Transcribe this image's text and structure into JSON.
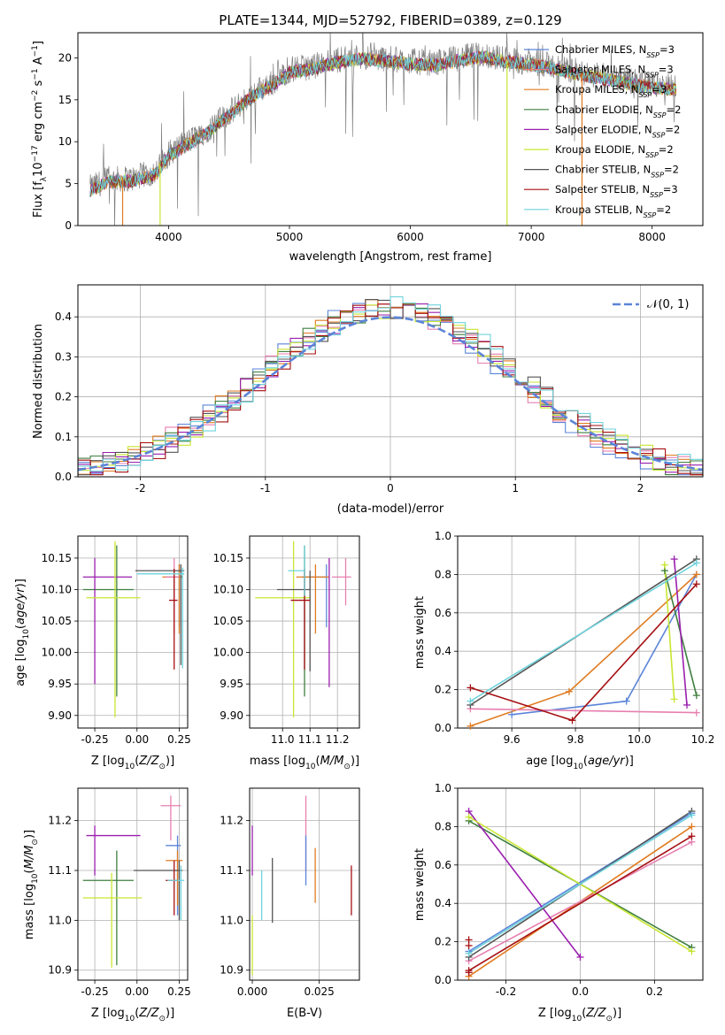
{
  "figure_title": "PLATE=1344, MJD=52792, FIBERID=0389, z=0.129",
  "colors": {
    "chabrier_miles": "#5b84d8",
    "salpeter_miles": "#e47a7a",
    "kroupa_miles": "#e07b20",
    "chabrier_elodie": "#3f7f3f",
    "salpeter_elodie": "#9a1fae",
    "kroupa_elodie": "#c8e632",
    "chabrier_stelib": "#555555",
    "salpeter_stelib": "#a60f12",
    "kroupa_stelib": "#6fd3dd",
    "gaussian": "#5b84d8",
    "pink": "#e77fb0"
  },
  "chart_data": [
    {
      "id": "spectrum",
      "type": "line",
      "title": "PLATE=1344, MJD=52792, FIBERID=0389, z=0.129",
      "xlabel": "wavelength [Angstrom, rest frame]",
      "ylabel": "Flux [f_λ10^-17 erg cm^-2 s^-1 A^-1]",
      "xlim": [
        3250,
        8420
      ],
      "ylim": [
        0,
        23
      ],
      "xticks": [
        4000,
        5000,
        6000,
        7000,
        8000
      ],
      "yticks": [
        0,
        5,
        10,
        15,
        20
      ],
      "legend_position": "top-right",
      "legend": [
        {
          "label": "Chabrier MILES, N",
          "sub": "SSP",
          "tail": "=3",
          "color_key": "chabrier_miles"
        },
        {
          "label": "Salpeter MILES, N",
          "sub": "SSP",
          "tail": "=3",
          "color_key": "salpeter_miles"
        },
        {
          "label": "Kroupa MILES, N",
          "sub": "SSP",
          "tail": "=3",
          "color_key": "kroupa_miles"
        },
        {
          "label": "Chabrier ELODIE, N",
          "sub": "SSP",
          "tail": "=2",
          "color_key": "chabrier_elodie"
        },
        {
          "label": "Salpeter ELODIE, N",
          "sub": "SSP",
          "tail": "=2",
          "color_key": "salpeter_elodie"
        },
        {
          "label": "Kroupa ELODIE, N",
          "sub": "SSP",
          "tail": "=2",
          "color_key": "kroupa_elodie"
        },
        {
          "label": "Chabrier STELIB, N",
          "sub": "SSP",
          "tail": "=2",
          "color_key": "chabrier_stelib"
        },
        {
          "label": "Salpeter STELIB, N",
          "sub": "SSP",
          "tail": "=3",
          "color_key": "salpeter_stelib"
        },
        {
          "label": "Kroupa STELIB, N",
          "sub": "SSP",
          "tail": "=2",
          "color_key": "kroupa_stelib"
        }
      ],
      "continuum": [
        [
          3350,
          4.5
        ],
        [
          3500,
          5.5
        ],
        [
          3700,
          5.6
        ],
        [
          3900,
          6.5
        ],
        [
          4000,
          8.6
        ],
        [
          4100,
          9.5
        ],
        [
          4300,
          11.2
        ],
        [
          4500,
          13.4
        ],
        [
          4700,
          15.8
        ],
        [
          4900,
          17.4
        ],
        [
          5000,
          18.6
        ],
        [
          5200,
          19.0
        ],
        [
          5400,
          19.8
        ],
        [
          5600,
          20.2
        ],
        [
          5800,
          19.9
        ],
        [
          6000,
          19.6
        ],
        [
          6200,
          19.4
        ],
        [
          6400,
          20.0
        ],
        [
          6600,
          20.4
        ],
        [
          6800,
          19.8
        ],
        [
          7000,
          19.5
        ],
        [
          7200,
          19.0
        ],
        [
          7400,
          18.3
        ],
        [
          7600,
          17.8
        ],
        [
          7800,
          17.2
        ],
        [
          8000,
          16.8
        ],
        [
          8200,
          16.5
        ]
      ]
    },
    {
      "id": "residuals",
      "type": "line",
      "xlabel": "(data-model)/error",
      "ylabel": "Normed distribution",
      "xlim": [
        -2.5,
        2.5
      ],
      "ylim": [
        0,
        0.48
      ],
      "xticks": [
        -2,
        -1,
        0,
        1,
        2
      ],
      "yticks": [
        0.0,
        0.1,
        0.2,
        0.3,
        0.4
      ],
      "grid": true,
      "legend_position": "top-right",
      "legend_label": "𝒩(0, 1)",
      "bin_width": 0.1,
      "gaussian_sigma": 1.0
    },
    {
      "id": "age_vs_z",
      "type": "scatter",
      "xlabel": "Z [log10(Z/Z⊙)]",
      "ylabel": "age [log10(age/yr)]",
      "xlim": [
        -0.35,
        0.3
      ],
      "ylim": [
        9.88,
        10.185
      ],
      "xticks": [
        -0.25,
        0.0,
        0.25
      ],
      "yticks": [
        9.9,
        9.95,
        10.0,
        10.05,
        10.1,
        10.15
      ],
      "grid": true,
      "points": [
        {
          "color_key": "chabrier_miles",
          "x": 0.25,
          "y": 10.12,
          "xerr": [
            0.05,
            0.02
          ],
          "yerr": [
            0.08,
            0.02
          ]
        },
        {
          "color_key": "kroupa_miles",
          "x": 0.25,
          "y": 10.12,
          "xerr": [
            0.1,
            0.02
          ],
          "yerr": [
            0.09,
            0.02
          ]
        },
        {
          "color_key": "pink",
          "x": 0.22,
          "y": 10.12,
          "xerr": [
            0.05,
            0.03
          ],
          "yerr": [
            0.09,
            0.03
          ]
        },
        {
          "color_key": "chabrier_elodie",
          "x": -0.12,
          "y": 10.1,
          "xerr": [
            0.2,
            0.1
          ],
          "yerr": [
            0.17,
            0.07
          ]
        },
        {
          "color_key": "salpeter_elodie",
          "x": -0.25,
          "y": 10.12,
          "xerr": [
            0.07,
            0.22
          ],
          "yerr": [
            0.17,
            0.03
          ]
        },
        {
          "color_key": "kroupa_elodie",
          "x": -0.13,
          "y": 10.087,
          "xerr": [
            0.17,
            0.15
          ],
          "yerr": [
            0.19,
            0.09
          ]
        },
        {
          "color_key": "chabrier_stelib",
          "x": 0.26,
          "y": 10.13,
          "xerr": [
            0.27,
            0.02
          ],
          "yerr": [
            0.15,
            0.01
          ]
        },
        {
          "color_key": "salpeter_stelib",
          "x": 0.22,
          "y": 10.083,
          "xerr": [
            0.03,
            0.02
          ],
          "yerr": [
            0.11,
            0.05
          ]
        },
        {
          "color_key": "kroupa_stelib",
          "x": 0.27,
          "y": 10.125,
          "xerr": [
            0.27,
            0.01
          ],
          "yerr": [
            0.15,
            0.01
          ]
        }
      ]
    },
    {
      "id": "age_vs_mass",
      "type": "scatter",
      "xlabel": "mass [log10(M/M⊙)]",
      "ylabel": "",
      "xlim": [
        10.88,
        11.28
      ],
      "ylim": [
        9.88,
        10.185
      ],
      "xticks": [
        11.0,
        11.1,
        11.2
      ],
      "yticks": [
        9.9,
        9.95,
        10.0,
        10.05,
        10.1,
        10.15
      ],
      "grid": true,
      "points": [
        {
          "color_key": "chabrier_miles",
          "x": 11.16,
          "y": 10.12,
          "xerr": [
            0.09,
            0.0
          ],
          "yerr": [
            0.08,
            0.02
          ]
        },
        {
          "color_key": "kroupa_miles",
          "x": 11.12,
          "y": 10.12,
          "xerr": [
            0.07,
            0.05
          ],
          "yerr": [
            0.09,
            0.02
          ]
        },
        {
          "color_key": "pink",
          "x": 11.23,
          "y": 10.12,
          "xerr": [
            0.05,
            0.02
          ],
          "yerr": [
            0.045,
            0.03
          ]
        },
        {
          "color_key": "chabrier_elodie",
          "x": 11.08,
          "y": 10.1,
          "xerr": [
            0.0,
            0.0
          ],
          "yerr": [
            0.17,
            0.07
          ]
        },
        {
          "color_key": "salpeter_elodie",
          "x": 11.17,
          "y": 10.12,
          "xerr": [
            0.0,
            0.0
          ],
          "yerr": [
            0.175,
            0.03
          ]
        },
        {
          "color_key": "kroupa_elodie",
          "x": 11.04,
          "y": 10.087,
          "xerr": [
            0.14,
            0.06
          ],
          "yerr": [
            0.19,
            0.09
          ]
        },
        {
          "color_key": "chabrier_stelib",
          "x": 11.1,
          "y": 10.1,
          "xerr": [
            0.12,
            0.0
          ],
          "yerr": [
            0.13,
            0.03
          ]
        },
        {
          "color_key": "salpeter_stelib",
          "x": 11.08,
          "y": 10.083,
          "xerr": [
            0.05,
            0.02
          ],
          "yerr": [
            0.11,
            0.05
          ]
        },
        {
          "color_key": "kroupa_stelib",
          "x": 11.08,
          "y": 10.13,
          "xerr": [
            0.06,
            0.0
          ],
          "yerr": [
            0.04,
            0.04
          ]
        }
      ]
    },
    {
      "id": "mass_weight_vs_age",
      "type": "line",
      "xlabel": "age [log10(age/yr)]",
      "ylabel": "mass weight",
      "xlim": [
        9.43,
        10.2
      ],
      "ylim": [
        0.0,
        1.0
      ],
      "xticks": [
        9.6,
        9.8,
        10.0,
        10.2
      ],
      "yticks": [
        0.0,
        0.2,
        0.4,
        0.6,
        0.8,
        1.0
      ],
      "grid": true,
      "series": [
        {
          "color_key": "chabrier_miles",
          "x": [
            9.6,
            9.96,
            10.18
          ],
          "y": [
            0.07,
            0.14,
            0.8
          ]
        },
        {
          "color_key": "kroupa_miles",
          "x": [
            9.47,
            9.78,
            10.18
          ],
          "y": [
            0.01,
            0.19,
            0.8
          ]
        },
        {
          "color_key": "pink",
          "x": [
            9.47,
            10.18
          ],
          "y": [
            0.1,
            0.08
          ]
        },
        {
          "color_key": "chabrier_elodie",
          "x": [
            10.08,
            10.18
          ],
          "y": [
            0.82,
            0.17
          ]
        },
        {
          "color_key": "salpeter_elodie",
          "x": [
            10.11,
            10.15
          ],
          "y": [
            0.88,
            0.12
          ]
        },
        {
          "color_key": "kroupa_elodie",
          "x": [
            10.08,
            10.11
          ],
          "y": [
            0.85,
            0.15
          ]
        },
        {
          "color_key": "chabrier_stelib",
          "x": [
            9.47,
            10.18
          ],
          "y": [
            0.12,
            0.88
          ]
        },
        {
          "color_key": "salpeter_stelib",
          "x": [
            9.47,
            9.79,
            10.18
          ],
          "y": [
            0.21,
            0.04,
            0.75
          ]
        },
        {
          "color_key": "kroupa_stelib",
          "x": [
            9.47,
            10.18
          ],
          "y": [
            0.14,
            0.86
          ]
        }
      ]
    },
    {
      "id": "mass_vs_z",
      "type": "scatter",
      "xlabel": "Z [log10(Z/Z⊙)]",
      "ylabel": "mass [log10(M/M⊙)]",
      "xlim": [
        -0.35,
        0.3
      ],
      "ylim": [
        10.88,
        11.265
      ],
      "xticks": [
        -0.25,
        0.0,
        0.25
      ],
      "yticks": [
        10.9,
        11.0,
        11.1,
        11.2
      ],
      "grid": true,
      "points": [
        {
          "color_key": "chabrier_miles",
          "x": 0.24,
          "y": 11.15,
          "xerr": [
            0.07,
            0.02
          ],
          "yerr": [
            0.14,
            0.02
          ]
        },
        {
          "color_key": "kroupa_miles",
          "x": 0.24,
          "y": 11.12,
          "xerr": [
            0.07,
            0.03
          ],
          "yerr": [
            0.09,
            0.02
          ]
        },
        {
          "color_key": "pink",
          "x": 0.2,
          "y": 11.23,
          "xerr": [
            0.06,
            0.06
          ],
          "yerr": [
            0.07,
            0.02
          ]
        },
        {
          "color_key": "chabrier_elodie",
          "x": -0.12,
          "y": 11.08,
          "xerr": [
            0.2,
            0.1
          ],
          "yerr": [
            0.17,
            0.06
          ]
        },
        {
          "color_key": "salpeter_elodie",
          "x": -0.25,
          "y": 11.17,
          "xerr": [
            0.05,
            0.27
          ],
          "yerr": [
            0.08,
            0.02
          ]
        },
        {
          "color_key": "kroupa_elodie",
          "x": -0.15,
          "y": 11.045,
          "xerr": [
            0.17,
            0.18
          ],
          "yerr": [
            0.14,
            0.05
          ]
        },
        {
          "color_key": "chabrier_stelib",
          "x": 0.25,
          "y": 11.1,
          "xerr": [
            0.27,
            0.02
          ],
          "yerr": [
            0.1,
            0.02
          ]
        },
        {
          "color_key": "salpeter_stelib",
          "x": 0.22,
          "y": 11.08,
          "xerr": [
            0.05,
            0.02
          ],
          "yerr": [
            0.07,
            0.04
          ]
        },
        {
          "color_key": "kroupa_stelib",
          "x": 0.26,
          "y": 11.08,
          "xerr": [
            0.08,
            0.02
          ],
          "yerr": [
            0.08,
            0.03
          ]
        }
      ]
    },
    {
      "id": "mass_vs_ebv",
      "type": "scatter",
      "xlabel": "E(B-V)",
      "ylabel": "",
      "xlim": [
        -0.001,
        0.04
      ],
      "ylim": [
        10.88,
        11.265
      ],
      "xticks": [
        0.0,
        0.025
      ],
      "xtick_labels": [
        "0.000",
        "0.025"
      ],
      "yticks": [
        10.9,
        11.0,
        11.1,
        11.2
      ],
      "grid": true,
      "points": [
        {
          "color_key": "salpeter_elodie",
          "x": 0.0,
          "y": 11.14,
          "xerr": [
            0.0,
            0.0
          ],
          "yerr": [
            0.05,
            0.05
          ]
        },
        {
          "color_key": "kroupa_elodie",
          "x": 0.0,
          "y": 10.95,
          "xerr": [
            0.0,
            0.0
          ],
          "yerr": [
            0.06,
            0.06
          ]
        },
        {
          "color_key": "kroupa_stelib",
          "x": 0.0035,
          "y": 11.05,
          "xerr": [
            0.0,
            0.0
          ],
          "yerr": [
            0.05,
            0.05
          ]
        },
        {
          "color_key": "chabrier_stelib",
          "x": 0.0075,
          "y": 11.06,
          "xerr": [
            0.0,
            0.0
          ],
          "yerr": [
            0.065,
            0.065
          ]
        },
        {
          "color_key": "pink",
          "x": 0.02,
          "y": 11.175,
          "xerr": [
            0.0,
            0.0
          ],
          "yerr": [
            0.075,
            0.075
          ]
        },
        {
          "color_key": "chabrier_miles",
          "x": 0.02,
          "y": 11.12,
          "xerr": [
            0.0,
            0.0
          ],
          "yerr": [
            0.05,
            0.05
          ]
        },
        {
          "color_key": "kroupa_miles",
          "x": 0.0235,
          "y": 11.09,
          "xerr": [
            0.0,
            0.0
          ],
          "yerr": [
            0.055,
            0.055
          ]
        },
        {
          "color_key": "salpeter_stelib",
          "x": 0.037,
          "y": 11.06,
          "xerr": [
            0.0,
            0.0
          ],
          "yerr": [
            0.05,
            0.05
          ]
        }
      ]
    },
    {
      "id": "mass_weight_vs_z",
      "type": "line",
      "xlabel": "Z [log10(Z/Z⊙)]",
      "ylabel": "mass weight",
      "xlim": [
        -0.33,
        0.33
      ],
      "ylim": [
        0.0,
        1.0
      ],
      "xticks": [
        -0.2,
        0.0,
        0.2
      ],
      "yticks": [
        0.0,
        0.2,
        0.4,
        0.6,
        0.8,
        1.0
      ],
      "grid": true,
      "series": [
        {
          "color_key": "chabrier_miles",
          "x": [
            -0.3,
            0.3
          ],
          "y": [
            0.15,
            0.87
          ]
        },
        {
          "color_key": "kroupa_miles",
          "x": [
            -0.3,
            0.3
          ],
          "y": [
            0.02,
            0.8
          ]
        },
        {
          "color_key": "pink",
          "x": [
            -0.3,
            0.3
          ],
          "y": [
            0.1,
            0.72
          ]
        },
        {
          "color_key": "chabrier_elodie",
          "x": [
            -0.3,
            0.3
          ],
          "y": [
            0.83,
            0.17
          ]
        },
        {
          "color_key": "salpeter_elodie",
          "x": [
            -0.3,
            0.0
          ],
          "y": [
            0.88,
            0.12
          ]
        },
        {
          "color_key": "kroupa_elodie",
          "x": [
            -0.3,
            0.3
          ],
          "y": [
            0.85,
            0.15
          ]
        },
        {
          "color_key": "chabrier_stelib",
          "x": [
            -0.3,
            0.3
          ],
          "y": [
            0.12,
            0.88
          ]
        },
        {
          "color_key": "salpeter_stelib",
          "x": [
            -0.3,
            0.3
          ],
          "y": [
            0.05,
            0.75
          ]
        },
        {
          "color_key": "kroupa_stelib",
          "x": [
            -0.3,
            0.3
          ],
          "y": [
            0.14,
            0.86
          ]
        }
      ],
      "extra_markers": [
        {
          "color_key": "salpeter_stelib",
          "x": -0.3,
          "y": 0.21
        },
        {
          "color_key": "salpeter_stelib",
          "x": -0.3,
          "y": 0.18
        },
        {
          "color_key": "salpeter_stelib",
          "x": -0.3,
          "y": 0.04
        }
      ]
    }
  ]
}
